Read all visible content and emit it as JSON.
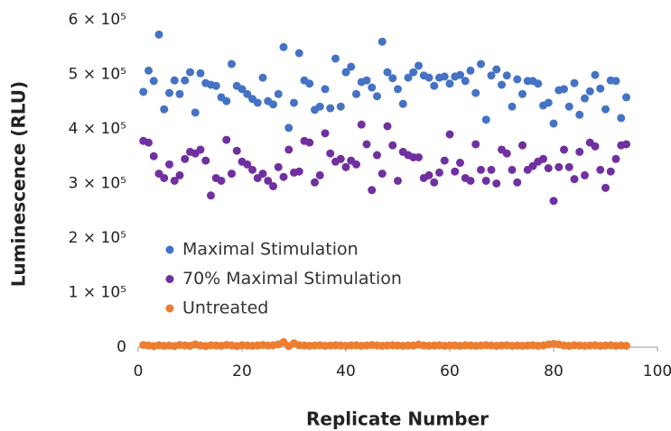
{
  "chart_data": {
    "type": "scatter",
    "xlabel": "Replicate Number",
    "ylabel": "Luminescence (RLU)",
    "x": [
      1,
      2,
      3,
      4,
      5,
      6,
      7,
      8,
      9,
      10,
      11,
      12,
      13,
      14,
      15,
      16,
      17,
      18,
      19,
      20,
      21,
      22,
      23,
      24,
      25,
      26,
      27,
      28,
      29,
      30,
      31,
      32,
      33,
      34,
      35,
      36,
      37,
      38,
      39,
      40,
      41,
      42,
      43,
      44,
      45,
      46,
      47,
      48,
      49,
      50,
      51,
      52,
      53,
      54,
      55,
      56,
      57,
      58,
      59,
      60,
      61,
      62,
      63,
      64,
      65,
      66,
      67,
      68,
      69,
      70,
      71,
      72,
      73,
      74,
      75,
      76,
      77,
      78,
      79,
      80,
      81,
      82,
      83,
      84,
      85,
      86,
      87,
      88,
      89,
      90,
      91,
      92,
      93,
      94
    ],
    "series": [
      {
        "name": "Maximal Stimulation",
        "color": "#4472c4",
        "values": [
          468000,
          507000,
          488000,
          573000,
          436000,
          466000,
          489000,
          464000,
          489000,
          504000,
          430000,
          502000,
          484000,
          481000,
          479000,
          458000,
          451000,
          519000,
          479000,
          473000,
          464000,
          455000,
          448000,
          494000,
          451000,
          445000,
          464000,
          550000,
          402000,
          448000,
          539000,
          489000,
          483000,
          435000,
          441000,
          473000,
          438000,
          529000,
          441000,
          504000,
          514000,
          464000,
          486000,
          489000,
          476000,
          460000,
          560000,
          504000,
          493000,
          473000,
          446000,
          494000,
          504000,
          516000,
          498000,
          494000,
          479000,
          494000,
          496000,
          483000,
          496000,
          499000,
          488000,
          507000,
          466000,
          519000,
          417000,
          498000,
          509000,
          481000,
          498000,
          441000,
          491000,
          464000,
          488000,
          488000,
          483000,
          443000,
          448000,
          410000,
          471000,
          473000,
          441000,
          484000,
          426000,
          456000,
          469000,
          499000,
          474000,
          436000,
          489000,
          488000,
          420000,
          458000
        ]
      },
      {
        "name": "70% Maximal Stimulation",
        "color": "#7030a0",
        "values": [
          378000,
          375000,
          350000,
          318000,
          310000,
          335000,
          305000,
          315000,
          345000,
          358000,
          355000,
          362000,
          342000,
          278000,
          310000,
          305000,
          380000,
          318000,
          360000,
          340000,
          335000,
          325000,
          310000,
          318000,
          305000,
          295000,
          330000,
          312000,
          362000,
          320000,
          322000,
          378000,
          375000,
          302000,
          315000,
          392000,
          355000,
          340000,
          345000,
          330000,
          342000,
          335000,
          408000,
          372000,
          288000,
          352000,
          318000,
          405000,
          370000,
          305000,
          358000,
          352000,
          348000,
          348000,
          310000,
          315000,
          302000,
          320000,
          342000,
          390000,
          322000,
          338000,
          310000,
          305000,
          372000,
          325000,
          305000,
          325000,
          300000,
          362000,
          355000,
          325000,
          302000,
          370000,
          325000,
          332000,
          340000,
          345000,
          328000,
          268000,
          330000,
          362000,
          330000,
          308000,
          358000,
          315000,
          375000,
          368000,
          325000,
          292000,
          322000,
          345000,
          370000,
          372000
        ]
      },
      {
        "name": "Untreated",
        "color": "#ed7d31",
        "values": [
          4000,
          3000,
          2000,
          3500,
          2500,
          3000,
          2000,
          4000,
          3000,
          2500,
          5000,
          3000,
          2000,
          3500,
          3000,
          2500,
          4000,
          3000,
          2000,
          3500,
          3000,
          2500,
          3000,
          4000,
          3000,
          3500,
          5000,
          9000,
          2000,
          7000,
          3500,
          3000,
          2500,
          3000,
          3500,
          2500,
          3000,
          3500,
          3000,
          2500,
          3000,
          3500,
          2500,
          3000,
          4000,
          3000,
          2500,
          3000,
          3500,
          3000,
          2500,
          3000,
          3000,
          4500,
          3000,
          2500,
          3000,
          3500,
          2500,
          3000,
          3000,
          2500,
          3500,
          3000,
          2500,
          3000,
          3500,
          3000,
          2500,
          3000,
          3500,
          2500,
          3000,
          2500,
          3000,
          3500,
          2500,
          3000,
          5000,
          6000,
          5000,
          3000,
          2500,
          3500,
          3000,
          2500,
          3000,
          3500,
          2500,
          3000,
          3500,
          2500,
          3000,
          2500
        ]
      }
    ],
    "xlim": [
      0,
      100
    ],
    "xticks": [
      0,
      20,
      40,
      60,
      80,
      100
    ],
    "ylim": [
      0,
      600000
    ],
    "yticks": [
      0,
      {
        "value": 100000,
        "label": "1 × 10⁵"
      },
      {
        "value": 200000,
        "label": "2 × 10⁵"
      },
      {
        "value": 300000,
        "label": "3 × 10⁵"
      },
      {
        "value": 400000,
        "label": "4 × 10⁵"
      },
      {
        "value": 500000,
        "label": "5 × 10⁵"
      },
      {
        "value": 600000,
        "label": "6 × 10⁵"
      }
    ],
    "grid": false,
    "legend": "lower left"
  }
}
